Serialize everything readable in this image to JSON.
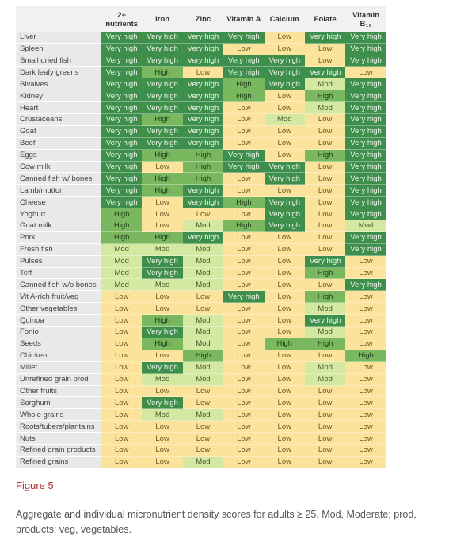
{
  "table": {
    "headers": [
      "2+ nutrients",
      "Iron",
      "Zinc",
      "Vitamin A",
      "Calcium",
      "Folate",
      "Vitamin B₁₂"
    ],
    "rows": [
      [
        "Liver",
        "Very high",
        "Very high",
        "Very high",
        "Very high",
        "Low",
        "Very high",
        "Very high"
      ],
      [
        "Spleen",
        "Very high",
        "Very high",
        "Very high",
        "Low",
        "Low",
        "Low",
        "Very high"
      ],
      [
        "Small dried fish",
        "Very high",
        "Very high",
        "Very high",
        "Very high",
        "Very high",
        "Low",
        "Very high"
      ],
      [
        "Dark leafy greens",
        "Very high",
        "High",
        "Low",
        "Very high",
        "Very high",
        "Very high",
        "Low"
      ],
      [
        "Bivalves",
        "Very high",
        "Very high",
        "Very high",
        "High",
        "Very high",
        "Mod",
        "Very high"
      ],
      [
        "Kidney",
        "Very high",
        "Very high",
        "Very high",
        "High",
        "Low",
        "High",
        "Very high"
      ],
      [
        "Heart",
        "Very high",
        "Very high",
        "Very high",
        "Low",
        "Low",
        "Mod",
        "Very high"
      ],
      [
        "Crustaceans",
        "Very high",
        "High",
        "Very high",
        "Low",
        "Mod",
        "Low",
        "Very high"
      ],
      [
        "Goat",
        "Very high",
        "Very high",
        "Very high",
        "Low",
        "Low",
        "Low",
        "Very high"
      ],
      [
        "Beef",
        "Very high",
        "Very high",
        "Very high",
        "Low",
        "Low",
        "Low",
        "Very high"
      ],
      [
        "Eggs",
        "Very high",
        "High",
        "High",
        "Very high",
        "Low",
        "High",
        "Very high"
      ],
      [
        "Cow milk",
        "Very high",
        "Low",
        "High",
        "Very high",
        "Very high",
        "Low",
        "Very high"
      ],
      [
        "Canned fish w/ bones",
        "Very high",
        "High",
        "High",
        "Low",
        "Very high",
        "Low",
        "Very high"
      ],
      [
        "Lamb/mutton",
        "Very high",
        "High",
        "Very high",
        "Low",
        "Low",
        "Low",
        "Very high"
      ],
      [
        "Cheese",
        "Very high",
        "Low",
        "Very high",
        "High",
        "Very high",
        "Low",
        "Very high"
      ],
      [
        "Yoghurt",
        "High",
        "Low",
        "Low",
        "Low",
        "Very high",
        "Low",
        "Very high"
      ],
      [
        "Goat milk",
        "High",
        "Low",
        "Mod",
        "High",
        "Very high",
        "Low",
        "Mod"
      ],
      [
        "Pork",
        "High",
        "High",
        "Very high",
        "Low",
        "Low",
        "Low",
        "Very high"
      ],
      [
        "Fresh fish",
        "Mod",
        "Mod",
        "Mod",
        "Low",
        "Low",
        "Low",
        "Very high"
      ],
      [
        "Pulses",
        "Mod",
        "Very high",
        "Mod",
        "Low",
        "Low",
        "Very high",
        "Low"
      ],
      [
        "Teff",
        "Mod",
        "Very high",
        "Mod",
        "Low",
        "Low",
        "High",
        "Low"
      ],
      [
        "Canned fish w/o bones",
        "Mod",
        "Mod",
        "Mod",
        "Low",
        "Low",
        "Low",
        "Very high"
      ],
      [
        "Vit A-rich fruit/veg",
        "Low",
        "Low",
        "Low",
        "Very high",
        "Low",
        "High",
        "Low"
      ],
      [
        "Other vegetables",
        "Low",
        "Low",
        "Low",
        "Low",
        "Low",
        "Mod",
        "Low"
      ],
      [
        "Quinoa",
        "Low",
        "High",
        "Mod",
        "Low",
        "Low",
        "Very high",
        "Low"
      ],
      [
        "Fonio",
        "Low",
        "Very high",
        "Mod",
        "Low",
        "Low",
        "Mod",
        "Low"
      ],
      [
        "Seeds",
        "Low",
        "High",
        "Mod",
        "Low",
        "High",
        "High",
        "Low"
      ],
      [
        "Chicken",
        "Low",
        "Low",
        "High",
        "Low",
        "Low",
        "Low",
        "High"
      ],
      [
        "Millet",
        "Low",
        "Very high",
        "Mod",
        "Low",
        "Low",
        "Mod",
        "Low"
      ],
      [
        "Unrefined grain prod",
        "Low",
        "Mod",
        "Mod",
        "Low",
        "Low",
        "Mod",
        "Low"
      ],
      [
        "Other fruits",
        "Low",
        "Low",
        "Low",
        "Low",
        "Low",
        "Low",
        "Low"
      ],
      [
        "Sorghum",
        "Low",
        "Very high",
        "Low",
        "Low",
        "Low",
        "Low",
        "Low"
      ],
      [
        "Whole grains",
        "Low",
        "Mod",
        "Mod",
        "Low",
        "Low",
        "Low",
        "Low"
      ],
      [
        "Roots/tubers/plantains",
        "Low",
        "Low",
        "Low",
        "Low",
        "Low",
        "Low",
        "Low"
      ],
      [
        "Nuts",
        "Low",
        "Low",
        "Low",
        "Low",
        "Low",
        "Low",
        "Low"
      ],
      [
        "Refined grain products",
        "Low",
        "Low",
        "Low",
        "Low",
        "Low",
        "Low",
        "Low"
      ],
      [
        "Refined grains",
        "Low",
        "Low",
        "Mod",
        "Low",
        "Low",
        "Low",
        "Low"
      ]
    ],
    "cell_colors": {
      "Very high": {
        "bg": "#3f8f4c",
        "fg": "#eef6ea"
      },
      "High": {
        "bg": "#79b85f",
        "fg": "#1f3a1a"
      },
      "Mod": {
        "bg": "#d5e8a2",
        "fg": "#4a5a30"
      },
      "Low": {
        "bg": "#fbe39b",
        "fg": "#6b5a2a"
      }
    }
  },
  "figure": {
    "label": "Figure 5",
    "caption": "Aggregate and individual micronutrient density scores for adults ≥ 25. Mod, Moderate; prod, products; veg, vegetables."
  }
}
